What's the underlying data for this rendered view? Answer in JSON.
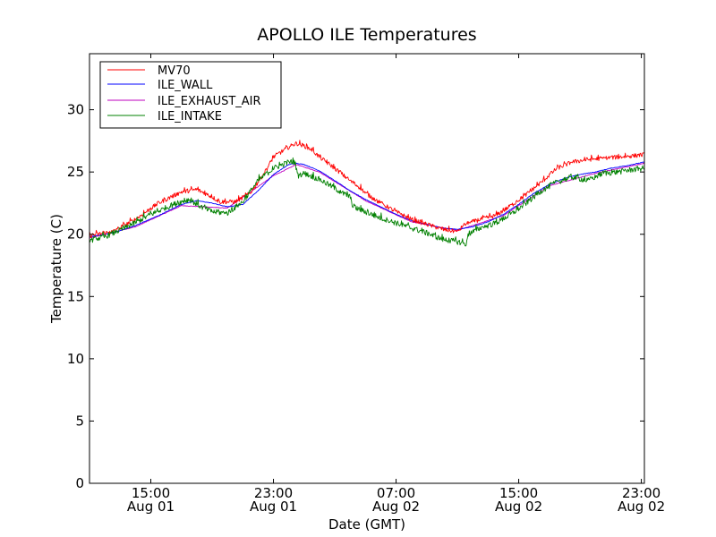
{
  "chart_data": {
    "type": "line",
    "title": "APOLLO ILE Temperatures",
    "xlabel": "Date (GMT)",
    "ylabel": "Temperature (C)",
    "ylim": [
      0,
      34.5
    ],
    "xlim_hours": [
      11.0,
      47.2
    ],
    "x_unit": "hours since 2013-08-01 00:00 GMT",
    "yticks": [
      0,
      5,
      10,
      15,
      20,
      25,
      30
    ],
    "xticks": [
      {
        "x": 15,
        "label1": "15:00",
        "label2": "Aug 01"
      },
      {
        "x": 23,
        "label1": "23:00",
        "label2": "Aug 01"
      },
      {
        "x": 31,
        "label1": "07:00",
        "label2": "Aug 02"
      },
      {
        "x": 39,
        "label1": "15:00",
        "label2": "Aug 02"
      },
      {
        "x": 47,
        "label1": "23:00",
        "label2": "Aug 02"
      }
    ],
    "legend_position": "top-left",
    "series": [
      {
        "name": "MV70",
        "color": "#ff0000",
        "noise": 0.35,
        "x": [
          11.0,
          12.5,
          14.0,
          15.5,
          17.0,
          18.0,
          19.0,
          19.5,
          20.5,
          21.5,
          22.5,
          23.0,
          24.0,
          24.5,
          25.0,
          25.5,
          26.0,
          27.0,
          28.0,
          28.7,
          29.0,
          30.0,
          31.0,
          32.0,
          33.0,
          34.0,
          35.0,
          35.5,
          36.5,
          37.5,
          38.5,
          39.5,
          40.5,
          41.5,
          42.5,
          43.5,
          44.5,
          45.5,
          46.5,
          47.2
        ],
        "y": [
          19.9,
          20.2,
          21.2,
          22.5,
          23.4,
          23.6,
          23.0,
          22.6,
          22.6,
          23.3,
          25.1,
          26.2,
          27.0,
          27.3,
          27.1,
          26.8,
          26.2,
          25.3,
          24.3,
          23.7,
          23.3,
          22.5,
          21.8,
          21.2,
          20.8,
          20.4,
          20.2,
          20.8,
          21.2,
          21.5,
          22.3,
          23.2,
          24.2,
          25.3,
          25.8,
          26.0,
          26.1,
          26.2,
          26.3,
          26.4
        ]
      },
      {
        "name": "ILE_WALL",
        "color": "#0000ff",
        "noise": 0.05,
        "x": [
          11.0,
          12.5,
          14.0,
          15.5,
          17.0,
          18.0,
          19.0,
          20.0,
          21.0,
          22.0,
          23.0,
          24.0,
          24.5,
          25.0,
          26.0,
          27.0,
          28.0,
          29.0,
          30.0,
          31.0,
          32.0,
          33.0,
          34.0,
          35.0,
          36.0,
          37.0,
          38.0,
          39.0,
          40.0,
          41.0,
          42.0,
          43.0,
          44.0,
          45.0,
          46.0,
          47.2
        ],
        "y": [
          19.8,
          20.1,
          20.7,
          21.5,
          22.4,
          22.7,
          22.5,
          22.2,
          22.4,
          23.5,
          24.8,
          25.6,
          25.7,
          25.6,
          25.1,
          24.3,
          23.5,
          22.8,
          22.2,
          21.6,
          21.1,
          20.8,
          20.5,
          20.4,
          20.6,
          21.0,
          21.6,
          22.4,
          23.3,
          24.0,
          24.5,
          24.8,
          25.0,
          25.3,
          25.5,
          25.8
        ]
      },
      {
        "name": "ILE_EXHAUST_AIR",
        "color": "#bf00bf",
        "noise": 0.05,
        "x": [
          11.0,
          14.0,
          17.0,
          20.0,
          23.0,
          24.5,
          26.0,
          29.0,
          32.0,
          35.0,
          38.0,
          41.0,
          44.0,
          47.2
        ],
        "y": [
          19.7,
          20.6,
          22.3,
          22.1,
          24.7,
          25.6,
          25.0,
          22.7,
          21.0,
          20.3,
          21.5,
          23.9,
          24.9,
          25.7
        ]
      },
      {
        "name": "ILE_INTAKE",
        "color": "#008000",
        "noise": 0.45,
        "x": [
          11.0,
          12.0,
          13.5,
          15.0,
          16.5,
          17.5,
          18.3,
          19.0,
          20.0,
          21.0,
          22.0,
          23.0,
          24.0,
          24.4,
          24.6,
          25.0,
          26.0,
          27.0,
          27.5,
          28.0,
          28.2,
          29.0,
          30.0,
          31.0,
          32.0,
          33.0,
          34.0,
          35.0,
          35.6,
          35.7,
          36.5,
          37.5,
          38.5,
          39.5,
          40.5,
          41.5,
          42.5,
          43.5,
          44.5,
          45.5,
          46.5,
          47.2
        ],
        "y": [
          19.5,
          19.8,
          20.6,
          21.6,
          22.4,
          22.8,
          22.2,
          21.8,
          21.7,
          22.6,
          24.3,
          25.3,
          25.8,
          25.8,
          24.7,
          24.9,
          24.4,
          23.7,
          23.3,
          23.0,
          22.2,
          21.8,
          21.3,
          20.9,
          20.5,
          20.1,
          19.6,
          19.4,
          19.2,
          20.0,
          20.5,
          20.9,
          21.6,
          22.5,
          23.5,
          24.2,
          24.6,
          24.3,
          24.9,
          25.0,
          25.2,
          25.3
        ]
      }
    ]
  }
}
